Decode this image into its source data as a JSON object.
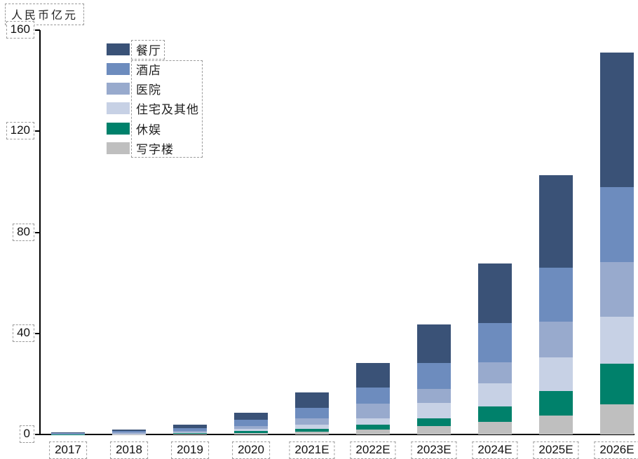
{
  "chart_data": {
    "type": "bar",
    "stacked": true,
    "title": "人民币亿元",
    "xlabel": "",
    "ylabel": "人民币亿元",
    "categories": [
      "2017",
      "2018",
      "2019",
      "2020",
      "2021E",
      "2022E",
      "2023E",
      "2024E",
      "2025E",
      "2026E"
    ],
    "series": [
      {
        "name": "餐厅",
        "color": "#3A5277",
        "values": [
          0.3,
          0.7,
          1.4,
          3.0,
          6.0,
          9.7,
          15.2,
          23.4,
          36.7,
          53.2
        ]
      },
      {
        "name": "酒店",
        "color": "#6D8CBE",
        "values": [
          0.2,
          0.6,
          1.1,
          2.4,
          4.1,
          6.4,
          10.5,
          15.7,
          21.2,
          29.8
        ]
      },
      {
        "name": "医院",
        "color": "#98AACD",
        "values": [
          0.1,
          0.3,
          0.6,
          1.2,
          2.5,
          5.7,
          5.5,
          8.3,
          14.1,
          21.5
        ]
      },
      {
        "name": "住宅及其他",
        "color": "#C7D1E5",
        "values": [
          0.1,
          0.2,
          0.4,
          0.8,
          1.7,
          2.4,
          6.1,
          9.1,
          13.3,
          18.8
        ]
      },
      {
        "name": "休娱",
        "color": "#00816B",
        "values": [
          0.05,
          0.1,
          0.3,
          0.7,
          1.1,
          2.0,
          3.0,
          6.1,
          9.9,
          16.0
        ]
      },
      {
        "name": "写字楼",
        "color": "#BFBFBF",
        "values": [
          0.05,
          0.1,
          0.2,
          0.6,
          1.2,
          2.0,
          3.3,
          5.0,
          7.4,
          11.9
        ]
      }
    ],
    "totals": [
      0.8,
      2.0,
      4.0,
      8.7,
      16.6,
      28.2,
      43.6,
      67.6,
      102.6,
      151.2
    ],
    "ylim": [
      0,
      160
    ],
    "yticks": [
      0,
      40,
      80,
      120,
      160
    ],
    "grid": false,
    "legend_position": "top-left",
    "axis_color": "#000000",
    "annotation_box_color": "#9b9b9b"
  }
}
